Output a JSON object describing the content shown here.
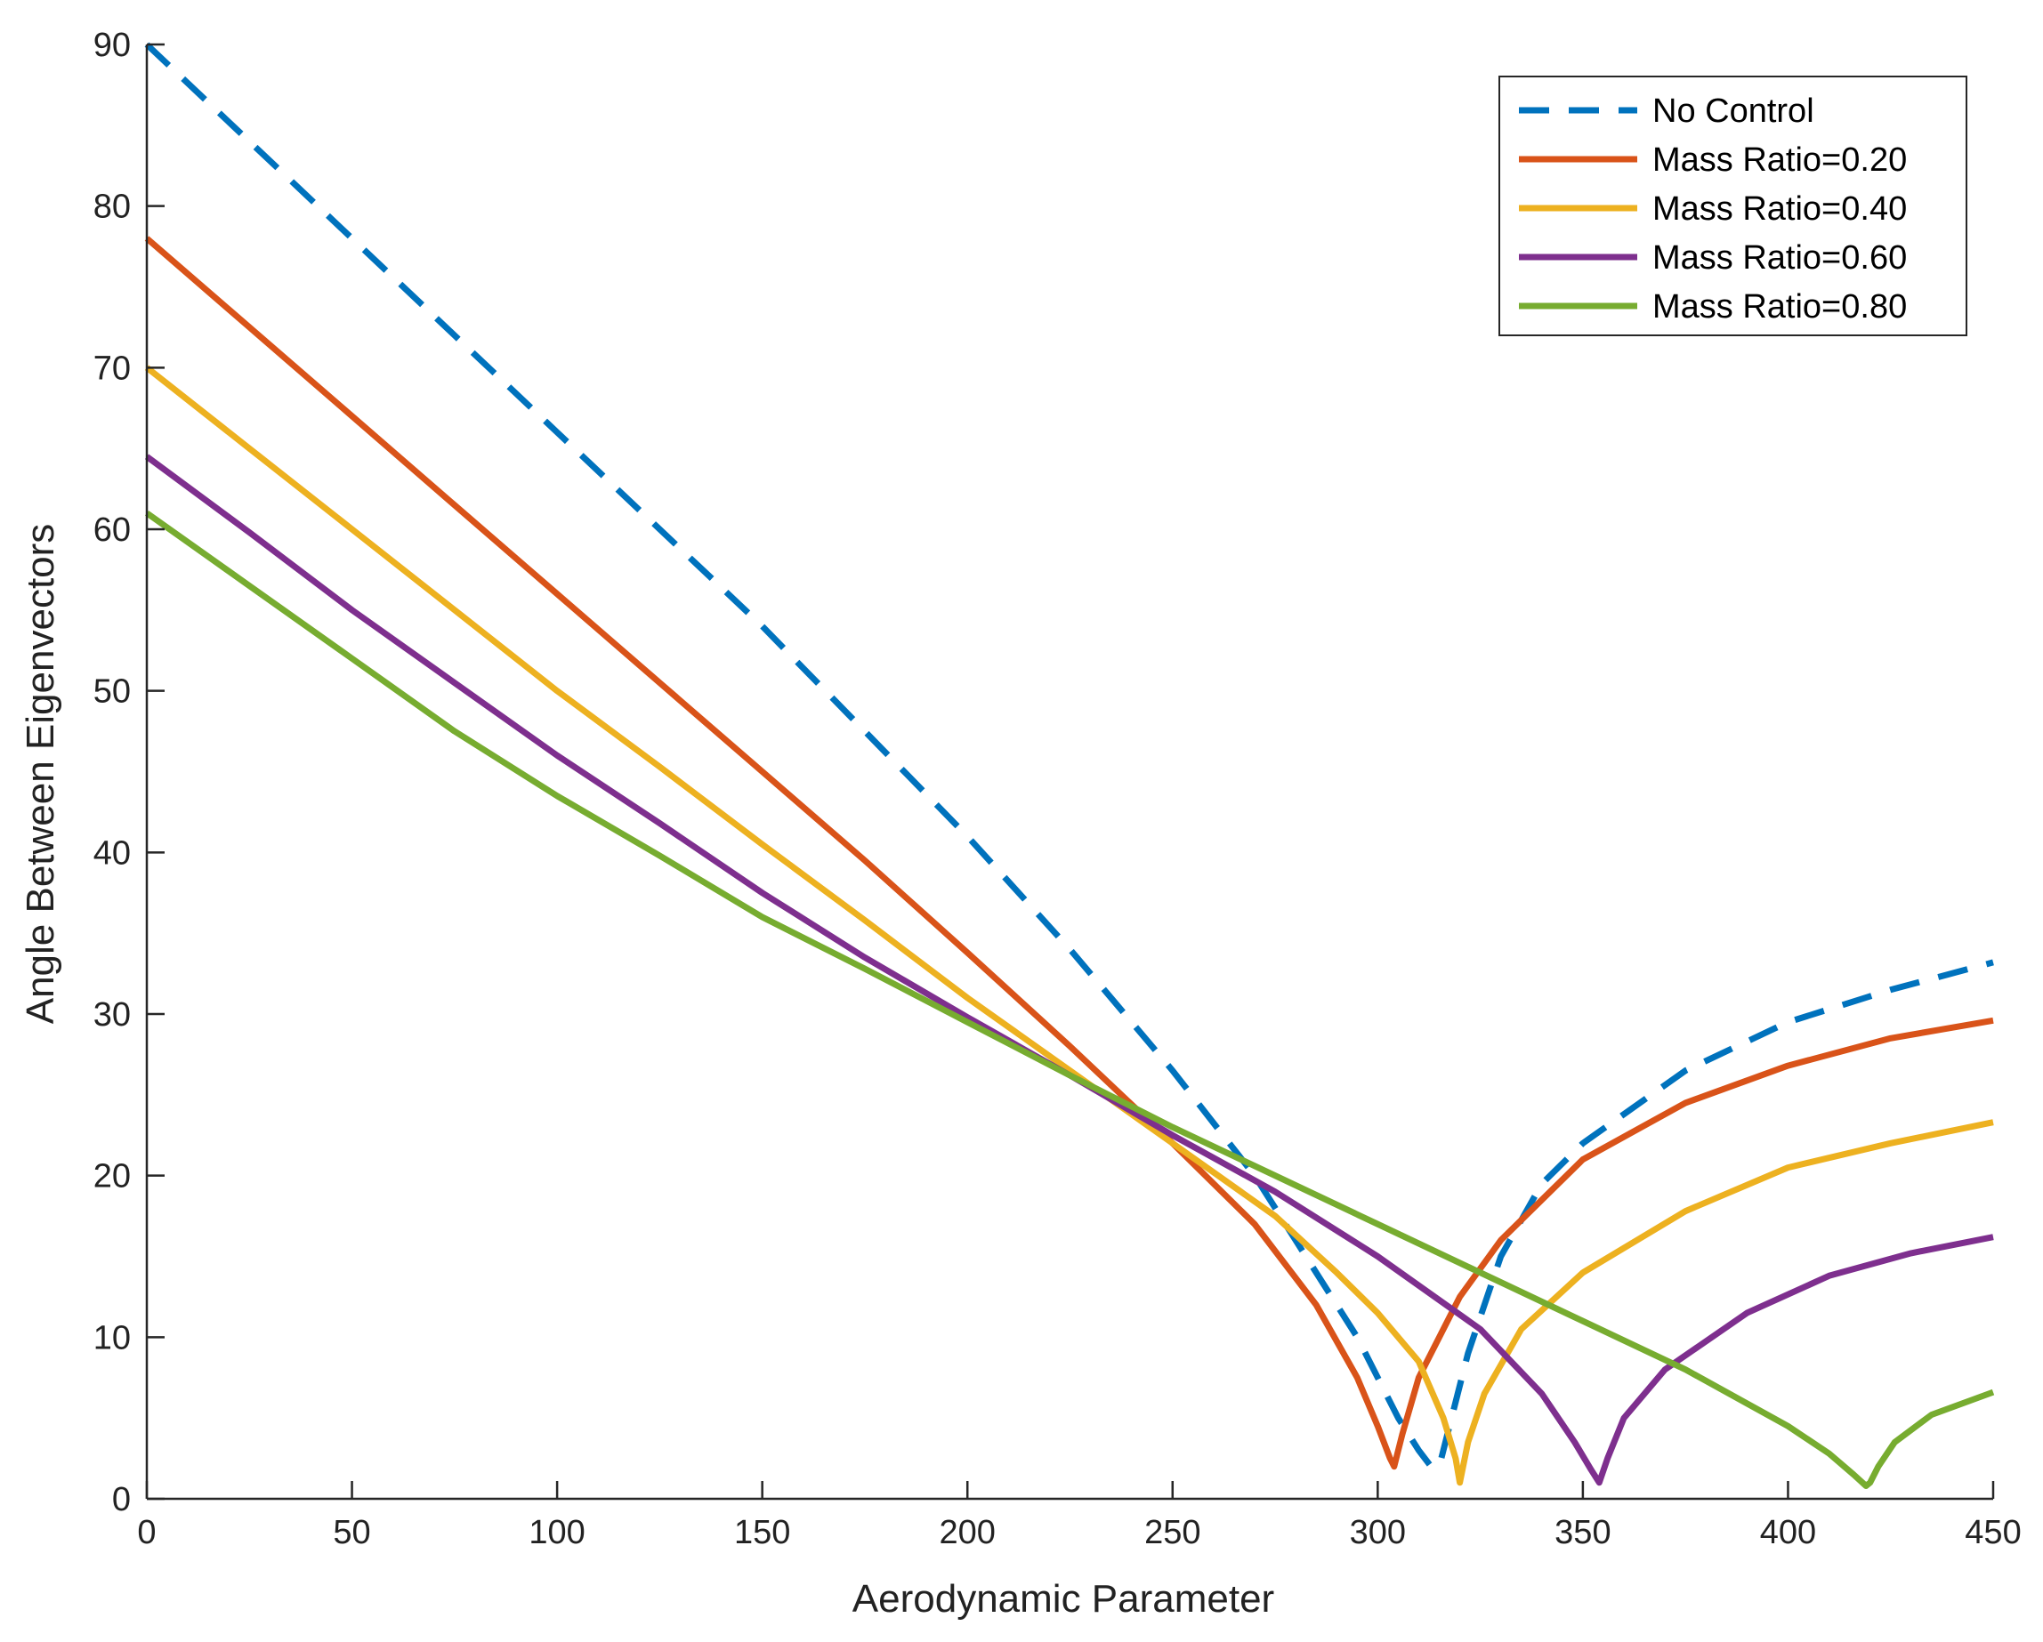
{
  "chart_data": {
    "type": "line",
    "title": "",
    "xlabel": "Aerodynamic Parameter",
    "ylabel": "Angle Between Eigenvectors",
    "xlim": [
      0,
      450
    ],
    "ylim": [
      0,
      90
    ],
    "xticks": [
      0,
      50,
      100,
      150,
      200,
      250,
      300,
      350,
      400,
      450
    ],
    "yticks": [
      0,
      10,
      20,
      30,
      40,
      50,
      60,
      70,
      80,
      90
    ],
    "grid": false,
    "legend_position": "top-right",
    "series": [
      {
        "name": "No Control",
        "color": "#0072BD",
        "dash": "dashed",
        "x": [
          0,
          25,
          50,
          75,
          100,
          125,
          150,
          175,
          200,
          225,
          250,
          270,
          285,
          295,
          305,
          310,
          313,
          315,
          318,
          322,
          330,
          340,
          350,
          375,
          400,
          425,
          450
        ],
        "y": [
          90,
          84,
          78,
          72,
          66,
          60,
          54,
          47.5,
          41,
          34,
          26.5,
          20,
          14,
          10,
          5,
          3,
          2,
          2,
          5,
          9,
          15,
          19.5,
          22,
          26.5,
          29.5,
          31.5,
          33.2
        ]
      },
      {
        "name": "Mass Ratio=0.20",
        "color": "#D95319",
        "dash": "solid",
        "x": [
          0,
          25,
          50,
          75,
          100,
          125,
          150,
          175,
          200,
          225,
          250,
          270,
          285,
          295,
          300,
          303,
          304,
          306,
          310,
          320,
          330,
          350,
          375,
          400,
          425,
          450
        ],
        "y": [
          78,
          72.5,
          67,
          61.5,
          56,
          50.5,
          45,
          39.5,
          33.8,
          28,
          22,
          17,
          12,
          7.5,
          4.5,
          2.5,
          2,
          4,
          7.5,
          12.5,
          16,
          21,
          24.5,
          26.8,
          28.5,
          29.6
        ]
      },
      {
        "name": "Mass Ratio=0.40",
        "color": "#EDB120",
        "dash": "solid",
        "x": [
          0,
          25,
          50,
          75,
          100,
          125,
          150,
          175,
          200,
          225,
          250,
          275,
          290,
          300,
          310,
          316,
          319,
          320,
          322,
          326,
          335,
          350,
          375,
          400,
          425,
          450
        ],
        "y": [
          70,
          65,
          60,
          55,
          50,
          45.3,
          40.5,
          35.8,
          31,
          26.5,
          22,
          17.5,
          14,
          11.5,
          8.5,
          5,
          2.5,
          1,
          3.5,
          6.5,
          10.5,
          14,
          17.8,
          20.5,
          22,
          23.3
        ]
      },
      {
        "name": "Mass Ratio=0.60",
        "color": "#7E2F8E",
        "dash": "solid",
        "x": [
          0,
          25,
          50,
          75,
          100,
          125,
          150,
          175,
          200,
          225,
          250,
          275,
          300,
          325,
          340,
          348,
          352,
          354,
          356,
          360,
          370,
          390,
          410,
          430,
          450
        ],
        "y": [
          64.5,
          59.8,
          55,
          50.5,
          46,
          41.8,
          37.5,
          33.5,
          29.8,
          26.2,
          22.5,
          19,
          15,
          10.5,
          6.5,
          3.5,
          1.8,
          1,
          2.5,
          5,
          8,
          11.5,
          13.8,
          15.2,
          16.2
        ]
      },
      {
        "name": "Mass Ratio=0.80",
        "color": "#77AC30",
        "dash": "solid",
        "x": [
          0,
          25,
          50,
          75,
          100,
          125,
          150,
          175,
          200,
          225,
          250,
          275,
          300,
          325,
          350,
          375,
          400,
          410,
          416,
          419,
          420,
          422,
          426,
          435,
          450
        ],
        "y": [
          61,
          56.5,
          52,
          47.5,
          43.5,
          39.8,
          36,
          32.8,
          29.5,
          26.2,
          23,
          20,
          17,
          14,
          11,
          8,
          4.5,
          2.8,
          1.5,
          0.8,
          1,
          2,
          3.5,
          5.2,
          6.6
        ]
      }
    ]
  }
}
